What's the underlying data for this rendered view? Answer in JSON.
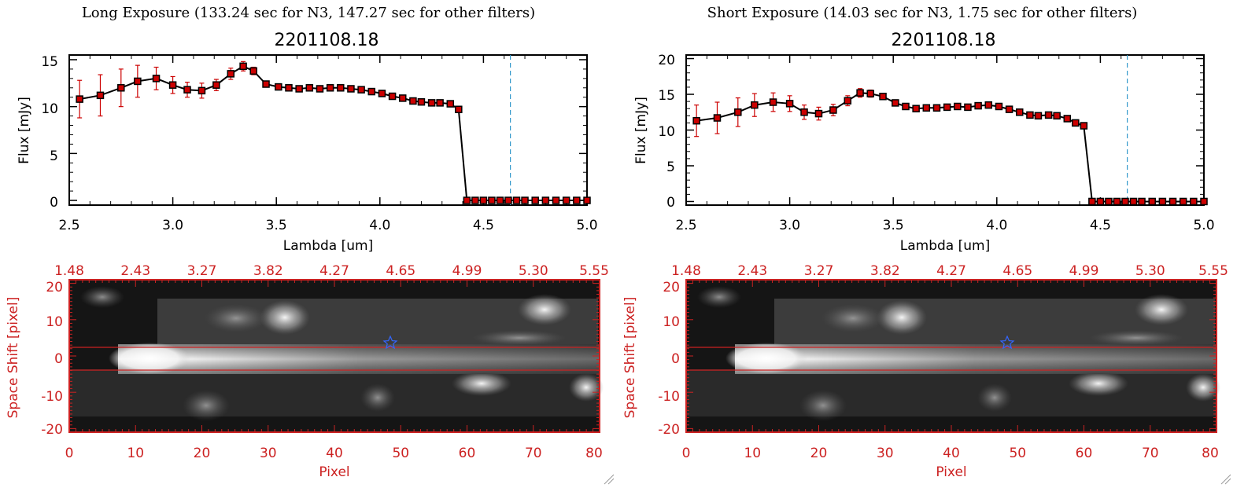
{
  "colors": {
    "data_red": "#cc0000",
    "axis_black": "#000000",
    "cut_line": "#3399cc",
    "image_axes": "#cc2222",
    "star": "#3366ff"
  },
  "panels": [
    {
      "title": "Long Exposure (133.24 sec for N3, 147.27 sec for other filters)",
      "plot_title": "2201108.18",
      "xlabel": "Lambda [um]",
      "ylabel": "Flux [mJy]",
      "x_ticks": [
        "2.5",
        "3.0",
        "3.5",
        "4.0",
        "4.5",
        "5.0"
      ],
      "y_ticks": [
        "0",
        "5",
        "10",
        "15"
      ],
      "image_top_ticks": [
        "1.48",
        "2.43",
        "3.27",
        "3.82",
        "4.27",
        "4.65",
        "4.99",
        "5.30",
        "5.55"
      ],
      "image_x_ticks": [
        "0",
        "10",
        "20",
        "30",
        "40",
        "50",
        "60",
        "70",
        "80"
      ],
      "image_y_ticks": [
        "20",
        "10",
        "0",
        "-10",
        "-20"
      ],
      "image_xlabel": "Pixel",
      "image_ylabel": "Space Shift [pixel]"
    },
    {
      "title": "Short Exposure (14.03 sec for N3, 1.75 sec for other filters)",
      "plot_title": "2201108.18",
      "xlabel": "Lambda [um]",
      "ylabel": "Flux [mJy]",
      "x_ticks": [
        "2.5",
        "3.0",
        "3.5",
        "4.0",
        "4.5",
        "5.0"
      ],
      "y_ticks": [
        "0",
        "5",
        "10",
        "15",
        "20"
      ],
      "image_top_ticks": [
        "1.48",
        "2.43",
        "3.27",
        "3.82",
        "4.27",
        "4.65",
        "4.99",
        "5.30",
        "5.55"
      ],
      "image_x_ticks": [
        "0",
        "10",
        "20",
        "30",
        "40",
        "50",
        "60",
        "70",
        "80"
      ],
      "image_y_ticks": [
        "20",
        "10",
        "0",
        "-10",
        "-20"
      ],
      "image_xlabel": "Pixel",
      "image_ylabel": "Space Shift [pixel]"
    }
  ],
  "chart_data": [
    {
      "type": "line",
      "title": "2201108.18",
      "xlabel": "Lambda [um]",
      "ylabel": "Flux [mJy]",
      "xlim": [
        2.5,
        5.0
      ],
      "ylim": [
        -0.5,
        15.5
      ],
      "cut_wavelength": 4.63,
      "x": [
        2.55,
        2.65,
        2.75,
        2.83,
        2.92,
        3.0,
        3.07,
        3.14,
        3.21,
        3.28,
        3.34,
        3.39,
        3.45,
        3.51,
        3.56,
        3.61,
        3.66,
        3.71,
        3.76,
        3.81,
        3.86,
        3.91,
        3.96,
        4.01,
        4.06,
        4.11,
        4.16,
        4.2,
        4.25,
        4.29,
        4.34,
        4.38,
        4.42,
        4.46,
        4.5,
        4.54,
        4.58,
        4.62,
        4.66,
        4.7,
        4.75,
        4.8,
        4.85,
        4.9,
        4.95,
        5.0
      ],
      "y": [
        10.8,
        11.2,
        12.0,
        12.7,
        13.0,
        12.3,
        11.8,
        11.7,
        12.3,
        13.5,
        14.3,
        13.8,
        12.4,
        12.1,
        12.0,
        11.9,
        12.0,
        11.9,
        12.0,
        12.0,
        11.9,
        11.8,
        11.6,
        11.4,
        11.1,
        10.9,
        10.6,
        10.5,
        10.4,
        10.4,
        10.3,
        9.7,
        0,
        0,
        0,
        0,
        0,
        0,
        0,
        0,
        0,
        0,
        0,
        0,
        0,
        0
      ],
      "err": [
        2.0,
        2.2,
        2.0,
        1.7,
        1.2,
        0.9,
        0.8,
        0.8,
        0.6,
        0.6,
        0.5,
        0.4,
        0.3,
        0.3,
        0.25,
        0.25,
        0.25,
        0.25,
        0.25,
        0.25,
        0.25,
        0.25,
        0.25,
        0.25,
        0.25,
        0.25,
        0.25,
        0.25,
        0.25,
        0.25,
        0.3,
        0.3,
        0,
        0,
        0,
        0,
        0,
        0,
        0,
        0,
        0,
        0,
        0,
        0,
        0,
        0
      ]
    },
    {
      "type": "line",
      "title": "2201108.18",
      "xlabel": "Lambda [um]",
      "ylabel": "Flux [mJy]",
      "xlim": [
        2.5,
        5.0
      ],
      "ylim": [
        -0.5,
        20.5
      ],
      "cut_wavelength": 4.63,
      "x": [
        2.55,
        2.65,
        2.75,
        2.83,
        2.92,
        3.0,
        3.07,
        3.14,
        3.21,
        3.28,
        3.34,
        3.39,
        3.45,
        3.51,
        3.56,
        3.61,
        3.66,
        3.71,
        3.76,
        3.81,
        3.86,
        3.91,
        3.96,
        4.01,
        4.06,
        4.11,
        4.16,
        4.2,
        4.25,
        4.29,
        4.34,
        4.38,
        4.42,
        4.46,
        4.5,
        4.54,
        4.58,
        4.62,
        4.66,
        4.7,
        4.75,
        4.8,
        4.85,
        4.9,
        4.95,
        5.0
      ],
      "y": [
        11.3,
        11.7,
        12.5,
        13.5,
        13.9,
        13.7,
        12.5,
        12.3,
        12.8,
        14.1,
        15.2,
        15.1,
        14.7,
        13.8,
        13.3,
        13.0,
        13.1,
        13.1,
        13.2,
        13.3,
        13.2,
        13.4,
        13.5,
        13.3,
        12.9,
        12.5,
        12.1,
        12.0,
        12.1,
        12.0,
        11.6,
        11.0,
        10.6,
        0,
        0,
        0,
        0,
        0,
        0,
        0,
        0,
        0,
        0,
        0,
        0,
        0
      ],
      "err": [
        2.2,
        2.2,
        2.0,
        1.6,
        1.3,
        1.1,
        1.0,
        0.9,
        0.8,
        0.7,
        0.6,
        0.5,
        0.4,
        0.4,
        0.35,
        0.35,
        0.3,
        0.3,
        0.3,
        0.3,
        0.3,
        0.3,
        0.3,
        0.3,
        0.3,
        0.3,
        0.3,
        0.3,
        0.3,
        0.35,
        0.35,
        0.4,
        0.4,
        0,
        0,
        0,
        0,
        0,
        0,
        0,
        0,
        0,
        0,
        0,
        0,
        0
      ]
    }
  ]
}
